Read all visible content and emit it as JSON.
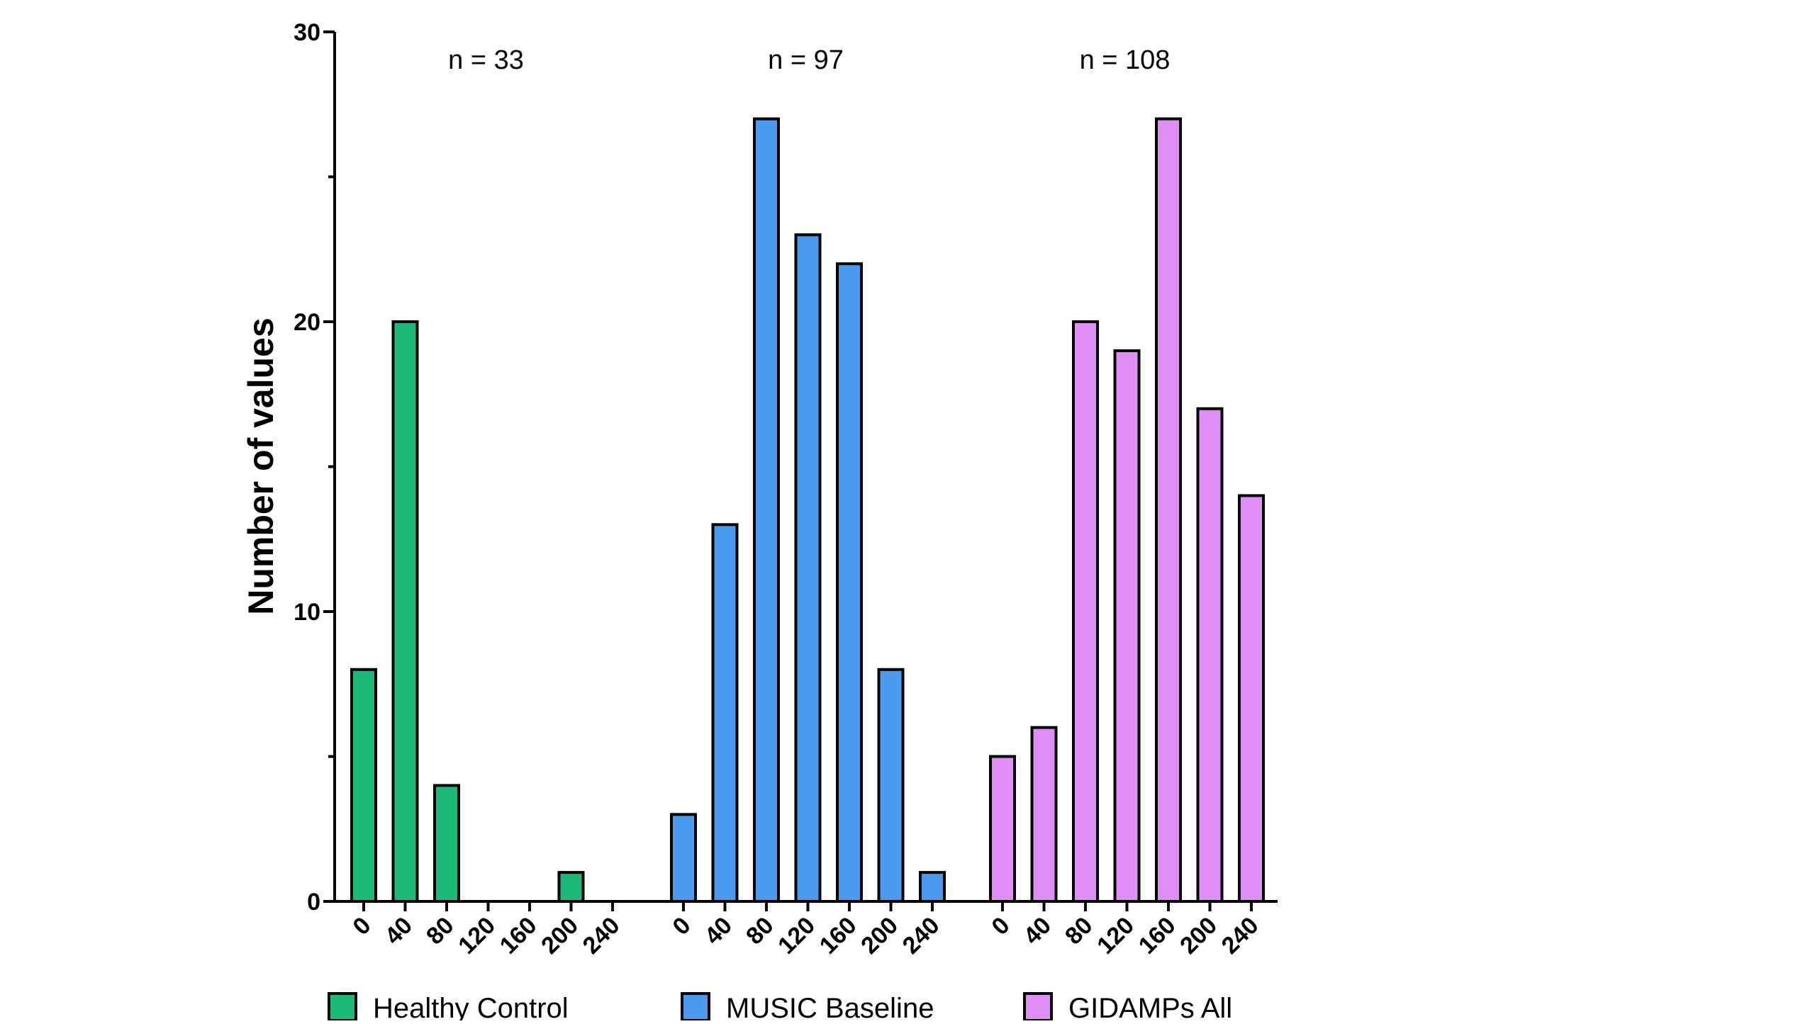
{
  "chart_data": {
    "type": "bar",
    "ylabel": "Number of values",
    "xlabel": "",
    "ylim": [
      0,
      30
    ],
    "y_ticks": [
      "0",
      "10",
      "20",
      "30"
    ],
    "legend_position": "bottom",
    "grid": false,
    "groups": [
      {
        "name": "Healthy Control",
        "color": "#1db978",
        "n_label": "n = 33",
        "categories": [
          "0",
          "40",
          "80",
          "120",
          "160",
          "200",
          "240"
        ],
        "values": [
          8,
          20,
          4,
          0,
          0,
          1,
          0
        ]
      },
      {
        "name": "MUSIC Baseline",
        "color": "#4a9bf0",
        "n_label": "n = 97",
        "categories": [
          "0",
          "40",
          "80",
          "120",
          "160",
          "200",
          "240"
        ],
        "values": [
          3,
          13,
          27,
          23,
          22,
          8,
          1
        ]
      },
      {
        "name": "GIDAMPs All",
        "color": "#df8ef5",
        "n_label": "n = 108",
        "categories": [
          "0",
          "40",
          "80",
          "120",
          "160",
          "200",
          "240"
        ],
        "values": [
          5,
          6,
          20,
          19,
          27,
          17,
          14
        ]
      }
    ]
  }
}
